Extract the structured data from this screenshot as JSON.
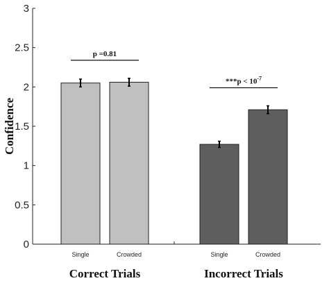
{
  "chart_data": {
    "type": "bar",
    "ylabel": "Confidence",
    "ylim": [
      0,
      3
    ],
    "yticks": [
      "0",
      "0.5",
      "1",
      "1.5",
      "2",
      "2.5",
      "3"
    ],
    "grid": false,
    "groups": [
      {
        "label": "Correct Trials",
        "color": "#c0c0c0",
        "bars": [
          {
            "category": "Single",
            "value": 2.05,
            "error": 0.05
          },
          {
            "category": "Crowded",
            "value": 2.06,
            "error": 0.05
          }
        ],
        "annotation": {
          "prefix": "p =0.81",
          "exp": ""
        }
      },
      {
        "label": "Incorrect Trials",
        "color": "#5e5e5e",
        "bars": [
          {
            "category": "Single",
            "value": 1.27,
            "error": 0.04
          },
          {
            "category": "Crowded",
            "value": 1.71,
            "error": 0.05
          }
        ],
        "annotation": {
          "prefix": "***p < 10",
          "exp": "-7"
        }
      }
    ]
  }
}
